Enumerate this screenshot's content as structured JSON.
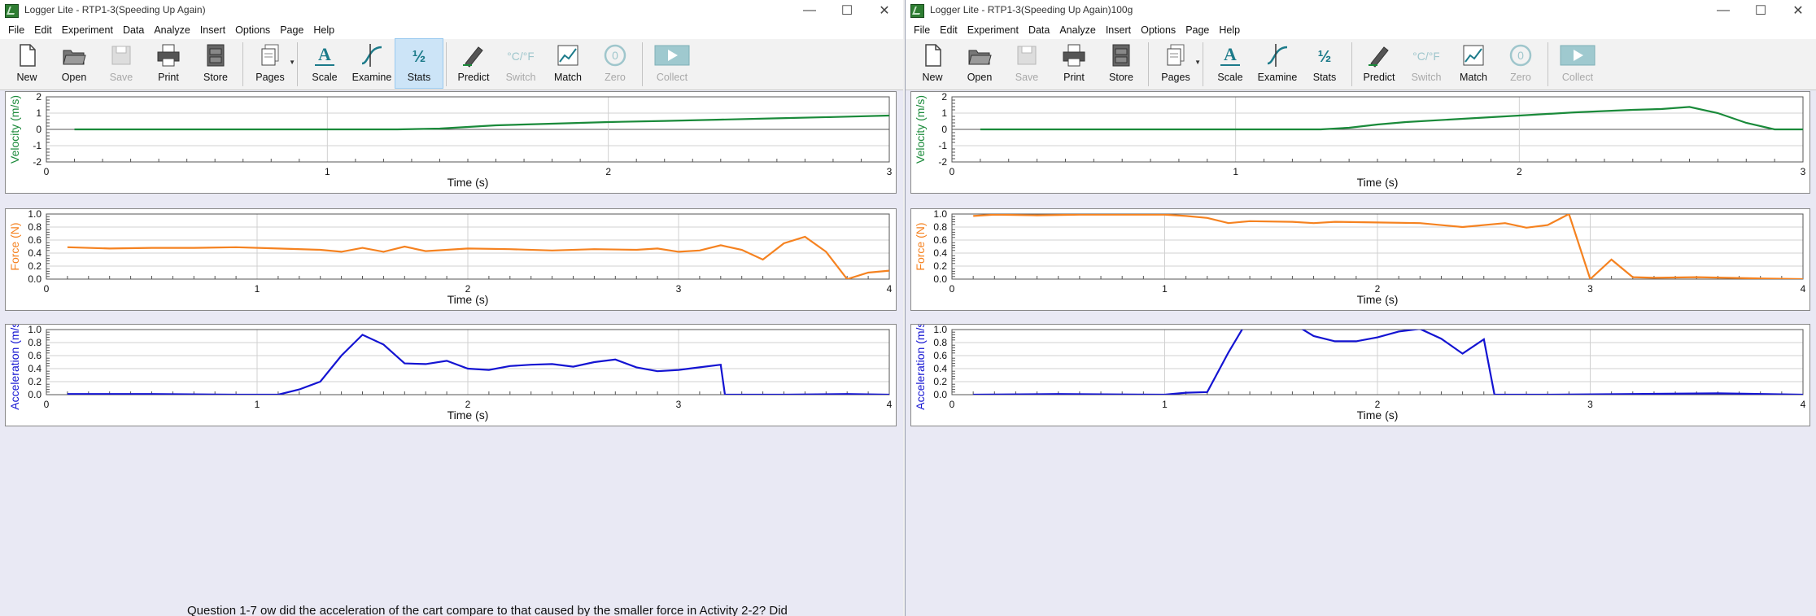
{
  "windows": [
    {
      "id": "left",
      "title": "Logger Lite - RTP1-3(Speeding Up Again)",
      "menu": [
        "File",
        "Edit",
        "Experiment",
        "Data",
        "Analyze",
        "Insert",
        "Options",
        "Page",
        "Help"
      ],
      "toolbar": [
        {
          "label": "New",
          "icon": "new-icon"
        },
        {
          "label": "Open",
          "icon": "open-icon"
        },
        {
          "label": "Save",
          "icon": "save-icon",
          "disabled": true
        },
        {
          "label": "Print",
          "icon": "print-icon"
        },
        {
          "label": "Store",
          "icon": "store-icon"
        },
        {
          "sep": true
        },
        {
          "label": "Pages",
          "icon": "pages-icon",
          "dropdown": true
        },
        {
          "sep": true
        },
        {
          "label": "Scale",
          "icon": "scale-icon"
        },
        {
          "label": "Examine",
          "icon": "examine-icon"
        },
        {
          "label": "Stats",
          "icon": "stats-icon",
          "active": true
        },
        {
          "sep": true
        },
        {
          "label": "Predict",
          "icon": "predict-icon"
        },
        {
          "label": "Switch",
          "icon": "switch-icon",
          "disabled": true
        },
        {
          "label": "Match",
          "icon": "match-icon"
        },
        {
          "label": "Zero",
          "icon": "zero-icon",
          "disabled": true
        },
        {
          "sep": true
        },
        {
          "label": "Collect",
          "icon": "collect-icon",
          "disabled": true
        }
      ],
      "graphs": [
        {
          "id": "velocity",
          "ylabel": "Velocity (m/s)",
          "xlabel": "Time (s)",
          "color": "#1a8a3a",
          "xlim": [
            0,
            3
          ],
          "ylim": [
            -2,
            2
          ],
          "xticks": [
            "0",
            "1",
            "2",
            "3"
          ],
          "yticks": [
            "-2",
            "-1",
            "0",
            "1",
            "2"
          ],
          "x": [
            0.1,
            0.5,
            1.0,
            1.25,
            1.4,
            1.5,
            1.6,
            1.8,
            2.0,
            2.2,
            2.4,
            2.6,
            2.8,
            3.0
          ],
          "y": [
            0,
            0,
            0,
            0,
            0.05,
            0.15,
            0.25,
            0.35,
            0.45,
            0.52,
            0.6,
            0.68,
            0.76,
            0.85
          ]
        },
        {
          "id": "force",
          "ylabel": "Force (N)",
          "xlabel": "Time (s)",
          "color": "#f58220",
          "xlim": [
            0,
            4
          ],
          "ylim": [
            0,
            1
          ],
          "xticks": [
            "0",
            "1",
            "2",
            "3",
            "4"
          ],
          "yticks": [
            "0.0",
            "0.2",
            "0.4",
            "0.6",
            "0.8",
            "1.0"
          ],
          "x": [
            0.1,
            0.3,
            0.5,
            0.7,
            0.9,
            1.1,
            1.3,
            1.4,
            1.5,
            1.6,
            1.7,
            1.8,
            2.0,
            2.2,
            2.4,
            2.6,
            2.8,
            2.9,
            3.0,
            3.1,
            3.2,
            3.3,
            3.4,
            3.5,
            3.6,
            3.7,
            3.8,
            3.9,
            4.0
          ],
          "y": [
            0.49,
            0.47,
            0.48,
            0.48,
            0.49,
            0.47,
            0.45,
            0.42,
            0.48,
            0.42,
            0.5,
            0.43,
            0.47,
            0.46,
            0.44,
            0.46,
            0.45,
            0.47,
            0.42,
            0.44,
            0.52,
            0.45,
            0.3,
            0.55,
            0.65,
            0.42,
            0.0,
            0.1,
            0.13
          ]
        },
        {
          "id": "acceleration",
          "ylabel": "Acceleration (m/s²)",
          "xlabel": "Time (s)",
          "color": "#1414d2",
          "xlim": [
            0,
            4
          ],
          "ylim": [
            0,
            1
          ],
          "xticks": [
            "0",
            "1",
            "2",
            "3",
            "4"
          ],
          "yticks": [
            "0.0",
            "0.2",
            "0.4",
            "0.6",
            "0.8",
            "1.0"
          ],
          "x": [
            0.1,
            0.5,
            0.9,
            1.1,
            1.2,
            1.3,
            1.4,
            1.5,
            1.6,
            1.7,
            1.8,
            1.9,
            2.0,
            2.1,
            2.2,
            2.3,
            2.4,
            2.5,
            2.6,
            2.7,
            2.8,
            2.9,
            3.0,
            3.1,
            3.2,
            3.22,
            3.5,
            3.8,
            4.0
          ],
          "y": [
            0.01,
            0.01,
            0.0,
            0.0,
            0.08,
            0.2,
            0.6,
            0.92,
            0.77,
            0.48,
            0.47,
            0.52,
            0.4,
            0.38,
            0.44,
            0.46,
            0.47,
            0.43,
            0.5,
            0.54,
            0.42,
            0.36,
            0.38,
            0.42,
            0.46,
            0.0,
            0.0,
            0.01,
            0.0
          ]
        }
      ]
    },
    {
      "id": "right",
      "title": "Logger Lite - RTP1-3(Speeding Up Again)100g",
      "menu": [
        "File",
        "Edit",
        "Experiment",
        "Data",
        "Analyze",
        "Insert",
        "Options",
        "Page",
        "Help"
      ],
      "toolbar": [
        {
          "label": "New",
          "icon": "new-icon"
        },
        {
          "label": "Open",
          "icon": "open-icon"
        },
        {
          "label": "Save",
          "icon": "save-icon",
          "disabled": true
        },
        {
          "label": "Print",
          "icon": "print-icon"
        },
        {
          "label": "Store",
          "icon": "store-icon"
        },
        {
          "sep": true
        },
        {
          "label": "Pages",
          "icon": "pages-icon",
          "dropdown": true
        },
        {
          "sep": true
        },
        {
          "label": "Scale",
          "icon": "scale-icon"
        },
        {
          "label": "Examine",
          "icon": "examine-icon"
        },
        {
          "label": "Stats",
          "icon": "stats-icon"
        },
        {
          "sep": true
        },
        {
          "label": "Predict",
          "icon": "predict-icon"
        },
        {
          "label": "Switch",
          "icon": "switch-icon",
          "disabled": true
        },
        {
          "label": "Match",
          "icon": "match-icon"
        },
        {
          "label": "Zero",
          "icon": "zero-icon",
          "disabled": true
        },
        {
          "sep": true
        },
        {
          "label": "Collect",
          "icon": "collect-icon",
          "disabled": true
        }
      ],
      "graphs": [
        {
          "id": "velocity",
          "ylabel": "Velocity (m/s)",
          "xlabel": "Time (s)",
          "color": "#1a8a3a",
          "xlim": [
            0,
            3
          ],
          "ylim": [
            -2,
            2
          ],
          "xticks": [
            "0",
            "1",
            "2",
            "3"
          ],
          "yticks": [
            "-2",
            "-1",
            "0",
            "1",
            "2"
          ],
          "x": [
            0.1,
            0.5,
            1.0,
            1.3,
            1.4,
            1.5,
            1.6,
            1.8,
            2.0,
            2.2,
            2.4,
            2.5,
            2.6,
            2.7,
            2.8,
            2.9,
            3.0
          ],
          "y": [
            0,
            0,
            0,
            0,
            0.1,
            0.3,
            0.45,
            0.65,
            0.85,
            1.05,
            1.2,
            1.25,
            1.38,
            1.0,
            0.4,
            0.0,
            0.0
          ]
        },
        {
          "id": "force",
          "ylabel": "Force (N)",
          "xlabel": "Time (s)",
          "color": "#f58220",
          "xlim": [
            0,
            4
          ],
          "ylim": [
            0,
            1
          ],
          "xticks": [
            "0",
            "1",
            "2",
            "3",
            "4"
          ],
          "yticks": [
            "0.0",
            "0.2",
            "0.4",
            "0.6",
            "0.8",
            "1.0"
          ],
          "x": [
            0.1,
            0.2,
            0.4,
            0.6,
            0.8,
            1.0,
            1.1,
            1.2,
            1.3,
            1.4,
            1.6,
            1.7,
            1.8,
            2.0,
            2.2,
            2.4,
            2.6,
            2.7,
            2.8,
            2.9,
            3.0,
            3.1,
            3.2,
            3.3,
            3.5,
            3.8,
            4.0
          ],
          "y": [
            0.97,
            0.99,
            0.98,
            0.99,
            0.99,
            0.99,
            0.97,
            0.94,
            0.86,
            0.89,
            0.88,
            0.86,
            0.88,
            0.87,
            0.86,
            0.8,
            0.86,
            0.79,
            0.83,
            1.0,
            0.0,
            0.3,
            0.03,
            0.02,
            0.03,
            0.01,
            0.0
          ]
        },
        {
          "id": "acceleration",
          "ylabel": "Acceleration (m/s²)",
          "xlabel": "Time (s)",
          "color": "#1414d2",
          "xlim": [
            0,
            4
          ],
          "ylim": [
            0,
            1
          ],
          "xticks": [
            "0",
            "1",
            "2",
            "3",
            "4"
          ],
          "yticks": [
            "0.0",
            "0.2",
            "0.4",
            "0.6",
            "0.8",
            "1.0"
          ],
          "x": [
            0.1,
            0.5,
            1.0,
            1.1,
            1.2,
            1.3,
            1.4,
            1.5,
            1.6,
            1.7,
            1.8,
            1.9,
            2.0,
            2.1,
            2.2,
            2.3,
            2.4,
            2.5,
            2.55,
            2.8,
            3.2,
            3.6,
            4.0
          ],
          "y": [
            0.0,
            0.01,
            0.0,
            0.03,
            0.04,
            0.65,
            1.2,
            1.25,
            1.1,
            0.9,
            0.82,
            0.82,
            0.88,
            0.97,
            1.01,
            0.86,
            0.63,
            0.85,
            0.0,
            0.0,
            0.01,
            0.02,
            0.0
          ]
        }
      ]
    }
  ],
  "footer": {
    "text": "Question 1-7 ow did the acceleration of the cart compare to that caused by the smaller force in Activity 2-2?  Did"
  }
}
